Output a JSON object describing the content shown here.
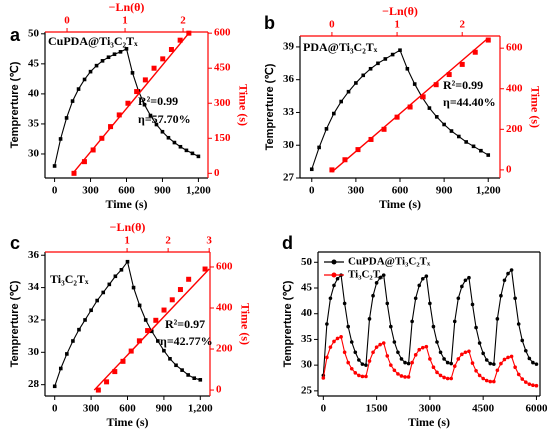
{
  "chart_data": [
    {
      "type": "dual-line",
      "title": "a",
      "xlabel": "Time (s)",
      "ylabel": "Temprerture (℃)",
      "x2label": "−Ln(θ)",
      "y2label": "Time (s)",
      "xlim": [
        -80,
        1280
      ],
      "xticks": [
        0,
        300,
        600,
        900,
        {
          "value": 1200,
          "label": "1,200"
        }
      ],
      "ylim": [
        26,
        50.3
      ],
      "yticks": [
        30,
        35,
        40,
        45,
        50
      ],
      "x2lim": [
        -0.38,
        2.43
      ],
      "x2ticks": [
        0,
        1,
        2
      ],
      "y2lim": [
        -20,
        605
      ],
      "y2ticks": [
        0,
        150,
        300,
        450,
        600
      ],
      "annotations": [
        "CuPDA@Ti₃C₂Tₓ",
        "R²=0.99",
        "η=57.70%"
      ],
      "series": [
        {
          "color": "#000000",
          "marker": "square",
          "x": [
            0,
            50,
            100,
            150,
            200,
            250,
            300,
            350,
            400,
            450,
            500,
            550,
            600,
            650,
            700,
            750,
            800,
            850,
            900,
            950,
            1000,
            1050,
            1100,
            1150,
            1200
          ],
          "values": [
            28,
            32.5,
            36,
            38.8,
            40.8,
            42.4,
            43.7,
            44.7,
            45.5,
            46.1,
            46.6,
            47,
            47.5,
            43.5,
            40.5,
            38.2,
            36.4,
            34.9,
            33.7,
            32.7,
            31.9,
            31.2,
            30.6,
            30.1,
            29.6
          ]
        },
        {
          "color": "#ff0000",
          "marker": "square",
          "line": false,
          "axis": "y2",
          "xaxis": "x2",
          "x": [
            0.12,
            0.3,
            0.45,
            0.6,
            0.75,
            0.9,
            1.05,
            1.2,
            1.35,
            1.5,
            1.65,
            1.8,
            1.95,
            2.1
          ],
          "values": [
            0,
            50,
            100,
            150,
            200,
            250,
            300,
            350,
            400,
            450,
            490,
            530,
            570,
            600
          ]
        },
        {
          "color": "#ff0000",
          "axis": "y2",
          "xaxis": "x2",
          "x": [
            0.1,
            2.1
          ],
          "values": [
            0,
            600
          ]
        }
      ]
    },
    {
      "type": "dual-line",
      "title": "b",
      "xlabel": "Time (s)",
      "ylabel": "Temprerture (℃)",
      "x2label": "−Ln(θ)",
      "y2label": "Time (s)",
      "xlim": [
        -80,
        1280
      ],
      "xticks": [
        0,
        300,
        600,
        900,
        {
          "value": 1200,
          "label": "1,200"
        }
      ],
      "ylim": [
        27,
        40
      ],
      "yticks": [
        27,
        30,
        33,
        36,
        39
      ],
      "x2lim": [
        -0.49,
        2.58
      ],
      "x2ticks": [
        0,
        1,
        2
      ],
      "y2lim": [
        -40,
        660
      ],
      "y2ticks": [
        0,
        200,
        400,
        600
      ],
      "annotations": [
        "PDA@Ti₃C₂Tₓ",
        "R²=0.99",
        "η=44.40%"
      ],
      "series": [
        {
          "color": "#000000",
          "marker": "square",
          "x": [
            0,
            50,
            100,
            150,
            200,
            250,
            300,
            350,
            400,
            450,
            500,
            550,
            600,
            650,
            700,
            750,
            800,
            850,
            900,
            950,
            1000,
            1050,
            1100,
            1150,
            1200
          ],
          "values": [
            27.8,
            29.8,
            31.5,
            32.9,
            34,
            34.9,
            35.7,
            36.4,
            37,
            37.5,
            37.9,
            38.3,
            38.7,
            37,
            35.6,
            34.4,
            33.4,
            32.6,
            31.9,
            31.3,
            30.8,
            30.3,
            29.9,
            29.5,
            29.1
          ]
        },
        {
          "color": "#ff0000",
          "marker": "square",
          "line": false,
          "axis": "y2",
          "xaxis": "x2",
          "x": [
            0,
            0.2,
            0.4,
            0.6,
            0.8,
            1.0,
            1.2,
            1.4,
            1.6,
            1.8,
            2.0,
            2.2,
            2.4
          ],
          "values": [
            0,
            50,
            100,
            150,
            200,
            260,
            310,
            360,
            420,
            470,
            520,
            580,
            640
          ]
        },
        {
          "color": "#ff0000",
          "axis": "y2",
          "xaxis": "x2",
          "x": [
            0,
            2.4
          ],
          "values": [
            -10,
            650
          ]
        }
      ]
    },
    {
      "type": "dual-line",
      "title": "c",
      "xlabel": "Time (s)",
      "ylabel": "Temprerture (℃)",
      "x2label": "−Ln(θ)",
      "y2label": "Time (s)",
      "xlim": [
        -80,
        1280
      ],
      "xticks": [
        0,
        300,
        600,
        900,
        {
          "value": 1200,
          "label": "1,200"
        }
      ],
      "ylim": [
        27.3,
        36.2
      ],
      "yticks": [
        28,
        30,
        32,
        34,
        36
      ],
      "x2lim": [
        -1.0,
        3.02
      ],
      "x2ticks": [
        1,
        2,
        3
      ],
      "y2lim": [
        -29,
        673
      ],
      "y2ticks": [
        0,
        200,
        400,
        600
      ],
      "annotations": [
        "Ti₃C₂Tₓ",
        "R²=0.97",
        "η=42.77%"
      ],
      "series": [
        {
          "color": "#000000",
          "marker": "square",
          "x": [
            0,
            50,
            100,
            150,
            200,
            250,
            300,
            350,
            400,
            450,
            500,
            550,
            600,
            650,
            700,
            750,
            800,
            850,
            900,
            950,
            1000,
            1050,
            1100,
            1150,
            1200
          ],
          "values": [
            27.9,
            29,
            29.9,
            30.7,
            31.4,
            32,
            32.6,
            33.2,
            33.7,
            34.2,
            34.7,
            35.1,
            35.6,
            34,
            32.9,
            32,
            31.3,
            30.7,
            30.1,
            29.6,
            29.2,
            28.9,
            28.6,
            28.4,
            28.3
          ]
        },
        {
          "color": "#ff0000",
          "marker": "square",
          "line": false,
          "axis": "y2",
          "xaxis": "x2",
          "x": [
            0.3,
            0.5,
            0.7,
            0.9,
            1.1,
            1.3,
            1.5,
            1.7,
            1.9,
            2.1,
            2.3,
            2.5,
            2.9
          ],
          "values": [
            0,
            40,
            90,
            140,
            190,
            240,
            290,
            340,
            390,
            440,
            490,
            540,
            590
          ]
        },
        {
          "color": "#ff0000",
          "axis": "y2",
          "xaxis": "x2",
          "x": [
            0.2,
            3.0
          ],
          "values": [
            0,
            590
          ]
        }
      ]
    },
    {
      "type": "line",
      "title": "d",
      "xlabel": "Time (s)",
      "ylabel": "Temprerture (℃)",
      "xlim": [
        -150,
        6100
      ],
      "xticks": [
        0,
        1500,
        3000,
        4500,
        6000
      ],
      "ylim": [
        24,
        52
      ],
      "yticks": [
        25,
        30,
        35,
        40,
        45,
        50
      ],
      "legend": "upper left",
      "series": [
        {
          "name": "CuPDA@Ti₃C₂Tₓ",
          "color": "#000000",
          "marker": "circle",
          "x": [
            0,
            100,
            200,
            300,
            400,
            500,
            600,
            700,
            800,
            900,
            1000,
            1100,
            1200,
            1300,
            1400,
            1500,
            1600,
            1700,
            1800,
            1900,
            2000,
            2100,
            2200,
            2300,
            2400,
            2500,
            2600,
            2700,
            2800,
            2900,
            3000,
            3100,
            3200,
            3300,
            3400,
            3500,
            3600,
            3700,
            3800,
            3900,
            4000,
            4100,
            4200,
            4300,
            4400,
            4500,
            4600,
            4700,
            4800,
            4900,
            5000,
            5100,
            5200,
            5300,
            5400,
            5500,
            5600,
            5700,
            5800,
            5900,
            6000
          ],
          "values": [
            28,
            38,
            43,
            45.5,
            46.8,
            47.5,
            42,
            37.5,
            34.5,
            32.5,
            31,
            30.2,
            30,
            39,
            43.5,
            46,
            47,
            47.5,
            42,
            37.5,
            34.5,
            32.5,
            31.2,
            30.5,
            30.3,
            38.5,
            43,
            45.5,
            46.8,
            47.3,
            42,
            37.5,
            34.5,
            32.5,
            31.2,
            30.5,
            30.3,
            38.5,
            43,
            45.3,
            46.5,
            47,
            41.8,
            37.3,
            34.3,
            32.3,
            31,
            30.3,
            30.2,
            39,
            43.5,
            46.5,
            47.8,
            48.5,
            43,
            38,
            34.8,
            32.8,
            31.3,
            30.5,
            30.2
          ]
        },
        {
          "name": "Ti₃C₂Tₓ",
          "color": "#ff0000",
          "marker": "circle",
          "x": [
            0,
            100,
            200,
            300,
            400,
            500,
            600,
            700,
            800,
            900,
            1000,
            1100,
            1200,
            1300,
            1400,
            1500,
            1600,
            1700,
            1800,
            1900,
            2000,
            2100,
            2200,
            2300,
            2400,
            2500,
            2600,
            2700,
            2800,
            2900,
            3000,
            3100,
            3200,
            3300,
            3400,
            3500,
            3600,
            3700,
            3800,
            3900,
            4000,
            4100,
            4200,
            4300,
            4400,
            4500,
            4600,
            4700,
            4800,
            4900,
            5000,
            5100,
            5200,
            5300,
            5400,
            5500,
            5600,
            5700,
            5800,
            5900,
            6000
          ],
          "values": [
            27.5,
            31.5,
            33.5,
            34.6,
            35.2,
            35.5,
            32.5,
            30.5,
            29.3,
            28.5,
            28,
            27.8,
            27.8,
            30.8,
            32.5,
            33.5,
            34,
            34.3,
            31.8,
            30,
            29,
            28.3,
            27.9,
            27.7,
            27.7,
            30.5,
            32,
            33,
            33.4,
            33.6,
            31.2,
            29.6,
            28.6,
            28,
            27.6,
            27.4,
            27.4,
            29.8,
            31.2,
            32.1,
            32.5,
            32.7,
            30.4,
            28.9,
            28,
            27.4,
            27,
            26.8,
            26.8,
            29,
            30.3,
            31.1,
            31.5,
            31.7,
            29.6,
            28.2,
            27.3,
            26.7,
            26.3,
            26.1,
            26
          ]
        }
      ]
    }
  ]
}
